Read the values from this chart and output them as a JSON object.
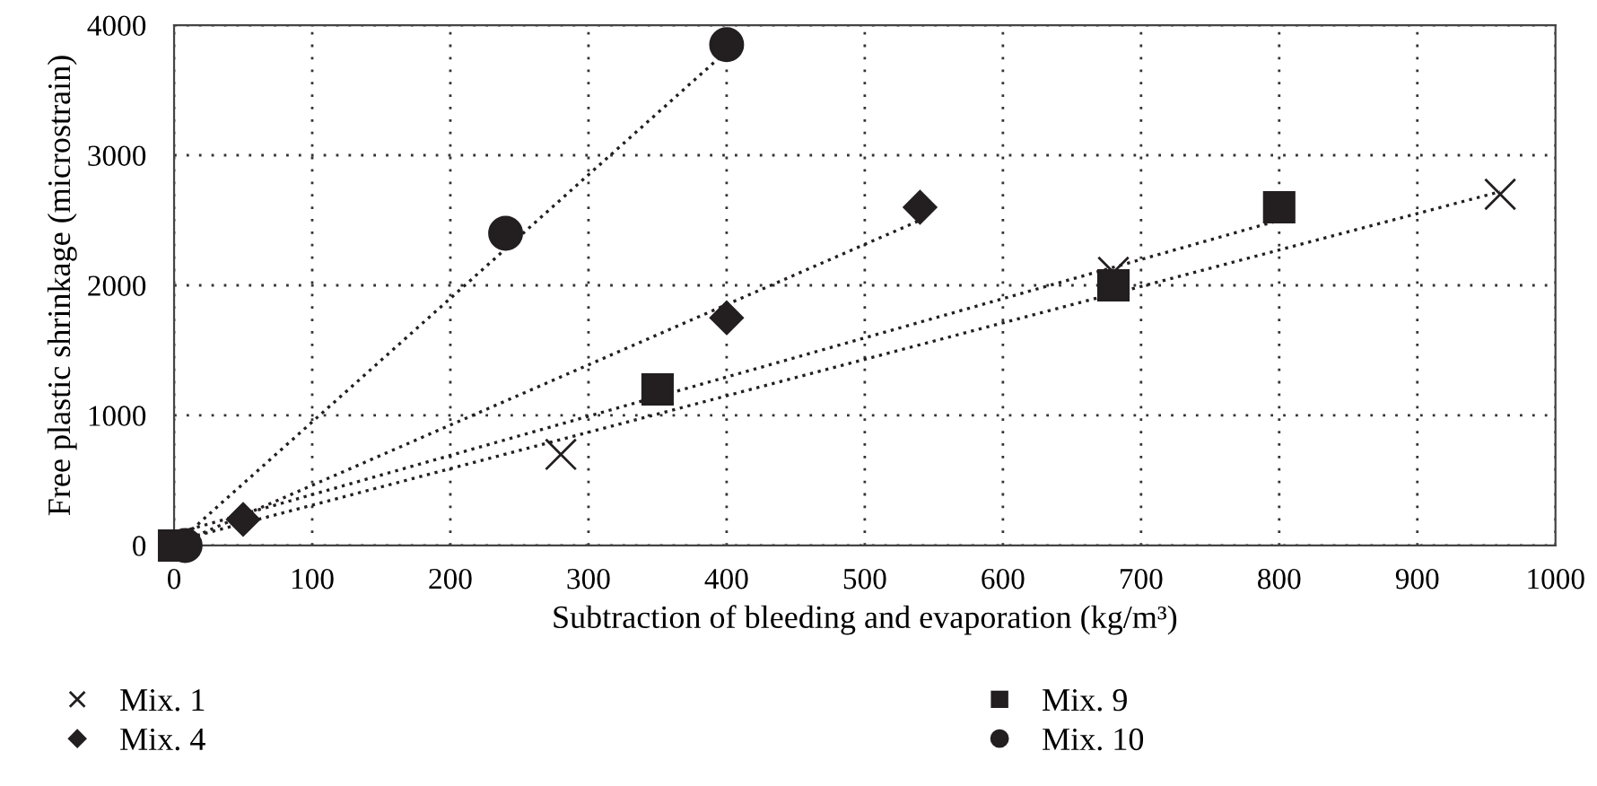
{
  "chart_data": {
    "type": "scatter",
    "xlabel": "Subtraction of bleeding and evaporation (kg/m³)",
    "ylabel": "Free plastic shrinkage (microstrain)",
    "xlim": [
      0,
      1000
    ],
    "xticks": [
      0,
      100,
      200,
      300,
      400,
      500,
      600,
      700,
      800,
      900,
      1000
    ],
    "ylim": [
      0,
      4000
    ],
    "yticks": [
      0,
      1000,
      2000,
      3000,
      4000
    ],
    "grid": true,
    "legend": "bottom",
    "series": [
      {
        "name": "Mix. 1",
        "marker": "cross",
        "color": "#231f20",
        "x": [
          280,
          680,
          960
        ],
        "values": [
          700,
          2100,
          2700
        ]
      },
      {
        "name": "Mix. 4",
        "marker": "diamond",
        "color": "#231f20",
        "x": [
          50,
          400,
          540
        ],
        "values": [
          200,
          1750,
          2600
        ]
      },
      {
        "name": "Mix. 9",
        "marker": "square",
        "color": "#231f20",
        "x": [
          0,
          350,
          680,
          800
        ],
        "values": [
          0,
          1200,
          2000,
          2600
        ]
      },
      {
        "name": "Mix. 10",
        "marker": "circle",
        "color": "#231f20",
        "x": [
          8,
          240,
          400
        ],
        "values": [
          0,
          2400,
          3850
        ]
      },
      {
        "type": "line",
        "line_style": "dotted",
        "marker": "none",
        "color": "#231f20",
        "x": [
          0,
          960
        ],
        "values": [
          30,
          2720
        ]
      },
      {
        "type": "line",
        "line_style": "dotted",
        "marker": "none",
        "color": "#231f20",
        "x": [
          0,
          540
        ],
        "values": [
          0,
          2500
        ]
      },
      {
        "type": "line",
        "line_style": "dotted",
        "marker": "none",
        "color": "#231f20",
        "x": [
          0,
          800
        ],
        "values": [
          90,
          2500
        ]
      },
      {
        "type": "line",
        "line_style": "dotted",
        "marker": "none",
        "color": "#231f20",
        "x": [
          0,
          400
        ],
        "values": [
          0,
          3800
        ]
      }
    ]
  }
}
